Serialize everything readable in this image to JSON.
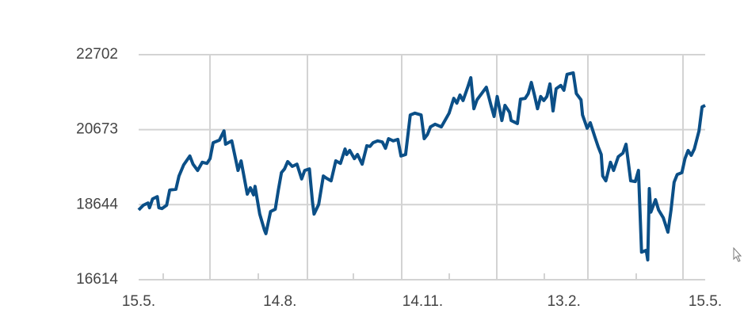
{
  "chart_data": {
    "type": "line",
    "color": "#0b4f87",
    "grid": true,
    "xlim": [
      0,
      365
    ],
    "ylim": [
      16614,
      22702
    ],
    "yticks": [
      16614,
      18644,
      20673,
      22702
    ],
    "xticks": [
      {
        "value": 0,
        "label": "15.5."
      },
      {
        "value": 91,
        "label": "14.8."
      },
      {
        "value": 183,
        "label": "14.11."
      },
      {
        "value": 274,
        "label": "13.2."
      },
      {
        "value": 365,
        "label": "15.5."
      }
    ],
    "x": [
      0,
      3,
      6,
      7,
      9,
      12,
      13,
      15,
      18,
      20,
      24,
      26,
      29,
      33,
      35,
      38,
      41,
      44,
      46,
      48,
      52,
      55,
      56,
      60,
      64,
      66,
      70,
      72,
      74,
      75,
      78,
      81,
      82,
      85,
      88,
      90,
      92,
      94,
      96,
      99,
      102,
      105,
      107,
      110,
      112,
      113,
      116,
      119,
      121,
      124,
      127,
      130,
      133,
      134,
      136,
      139,
      141,
      144,
      147,
      149,
      151,
      154,
      157,
      159,
      161,
      164,
      167,
      169,
      172,
      175,
      178,
      182,
      184,
      186,
      188,
      191,
      195,
      198,
      200,
      203,
      205,
      207,
      209,
      212,
      214,
      216,
      218,
      221,
      224,
      227,
      229,
      231,
      234,
      236,
      239,
      240,
      244,
      246,
      249,
      251,
      253,
      255,
      257,
      259,
      261,
      263,
      265,
      267,
      269,
      272,
      274,
      276,
      280,
      282,
      285,
      286,
      289,
      291,
      294,
      296,
      298,
      299,
      301,
      304,
      306,
      309,
      312,
      314,
      317,
      320,
      322,
      324,
      327,
      328,
      329,
      330,
      333,
      335,
      338,
      341,
      343,
      345,
      347,
      350,
      352,
      354,
      356,
      358,
      361,
      363,
      365
    ],
    "values": [
      18500,
      18630,
      18690,
      18560,
      18800,
      18860,
      18560,
      18540,
      18630,
      19040,
      19060,
      19420,
      19720,
      19960,
      19740,
      19570,
      19790,
      19760,
      19890,
      20320,
      20390,
      20640,
      20280,
      20370,
      19570,
      19830,
      18930,
      19100,
      18910,
      19140,
      18390,
      17960,
      17860,
      18460,
      18520,
      19040,
      19510,
      19610,
      19810,
      19680,
      19740,
      19340,
      19570,
      19610,
      18710,
      18390,
      18650,
      19420,
      19360,
      19290,
      19830,
      19760,
      20150,
      20000,
      20110,
      19890,
      20000,
      19740,
      20240,
      20220,
      20320,
      20370,
      20340,
      20170,
      20430,
      20370,
      20410,
      19960,
      20000,
      21070,
      21120,
      21070,
      20430,
      20540,
      20750,
      20820,
      20750,
      20970,
      21120,
      21520,
      21390,
      21610,
      21460,
      21820,
      22080,
      21240,
      21480,
      21650,
      21820,
      21330,
      21030,
      21570,
      20920,
      21330,
      21140,
      20920,
      20840,
      21500,
      21520,
      21650,
      21950,
      21610,
      21240,
      21570,
      21460,
      21570,
      21910,
      21180,
      21780,
      21870,
      21740,
      22170,
      22210,
      21650,
      21480,
      21070,
      20710,
      20860,
      20470,
      20220,
      20000,
      19420,
      19290,
      19790,
      19570,
      19940,
      20040,
      20280,
      19290,
      19270,
      19570,
      17360,
      17410,
      17150,
      19080,
      18440,
      18780,
      18500,
      18290,
      17900,
      18500,
      19250,
      19460,
      19510,
      19890,
      20110,
      19980,
      20150,
      20640,
      21290,
      21330
    ]
  }
}
